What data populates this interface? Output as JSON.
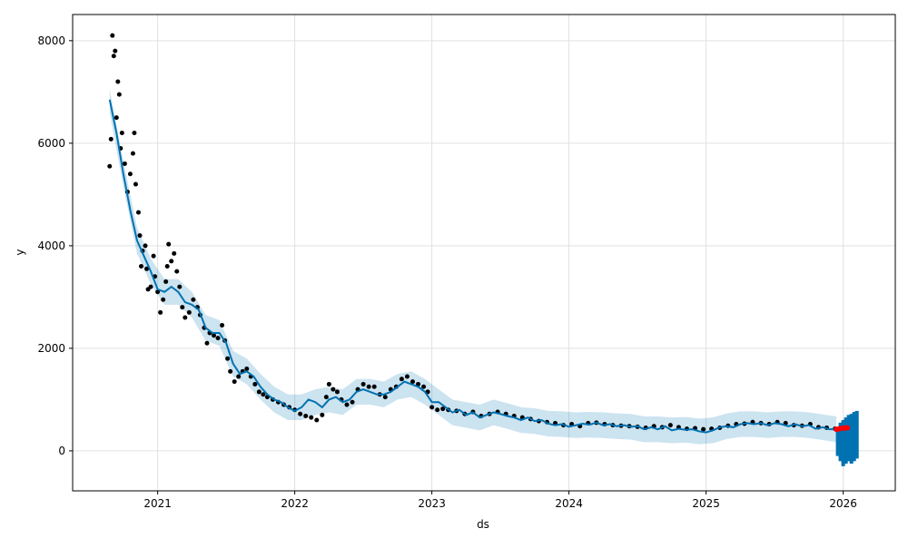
{
  "chart_data": {
    "type": "forecast",
    "xlabel": "ds",
    "ylabel": "y",
    "xlim": [
      2020.38,
      2026.38
    ],
    "xticks": [
      2021,
      2022,
      2023,
      2024,
      2025,
      2026
    ],
    "ylim": [
      -780,
      8510
    ],
    "yticks": [
      0,
      2000,
      4000,
      6000,
      8000
    ],
    "grid": true,
    "point_color": "#000000",
    "recent_color": "#ff0000",
    "line_color": "#0072B2",
    "band_color": "#0072B2",
    "points": {
      "x": [
        2020.65,
        2020.66,
        2020.67,
        2020.68,
        2020.69,
        2020.7,
        2020.71,
        2020.72,
        2020.73,
        2020.74,
        2020.76,
        2020.78,
        2020.8,
        2020.82,
        2020.83,
        2020.84,
        2020.86,
        2020.87,
        2020.88,
        2020.89,
        2020.91,
        2020.92,
        2020.93,
        2020.95,
        2020.97,
        2020.98,
        2021.0,
        2021.02,
        2021.04,
        2021.06,
        2021.07,
        2021.08,
        2021.1,
        2021.12,
        2021.14,
        2021.16,
        2021.18,
        2021.2,
        2021.23,
        2021.26,
        2021.29,
        2021.31,
        2021.34,
        2021.36,
        2021.38,
        2021.41,
        2021.44,
        2021.47,
        2021.49,
        2021.51,
        2021.53,
        2021.56,
        2021.59,
        2021.62,
        2021.65,
        2021.68,
        2021.71,
        2021.74,
        2021.77,
        2021.8,
        2021.84,
        2021.88,
        2021.92,
        2021.96,
        2022.0,
        2022.04,
        2022.08,
        2022.12,
        2022.16,
        2022.2,
        2022.23,
        2022.25,
        2022.28,
        2022.31,
        2022.34,
        2022.38,
        2022.42,
        2022.46,
        2022.5,
        2022.54,
        2022.58,
        2022.62,
        2022.66,
        2022.7,
        2022.74,
        2022.78,
        2022.82,
        2022.86,
        2022.9,
        2022.94,
        2022.97,
        2023.0,
        2023.04,
        2023.08,
        2023.12,
        2023.18,
        2023.24,
        2023.3,
        2023.36,
        2023.42,
        2023.48,
        2023.54,
        2023.6,
        2023.66,
        2023.72,
        2023.78,
        2023.84,
        2023.9,
        2023.96,
        2024.02,
        2024.08,
        2024.14,
        2024.2,
        2024.26,
        2024.32,
        2024.38,
        2024.44,
        2024.5,
        2024.56,
        2024.62,
        2024.68,
        2024.74,
        2024.8,
        2024.86,
        2024.92,
        2024.98,
        2025.04,
        2025.1,
        2025.16,
        2025.22,
        2025.28,
        2025.34,
        2025.4,
        2025.46,
        2025.52,
        2025.58,
        2025.64,
        2025.7,
        2025.76,
        2025.82,
        2025.88,
        2025.94
      ],
      "y": [
        5550,
        6080,
        8100,
        7700,
        7800,
        6500,
        7200,
        6950,
        5900,
        6200,
        5600,
        5050,
        5400,
        5800,
        6200,
        5200,
        4650,
        4200,
        3600,
        3900,
        4000,
        3550,
        3150,
        3200,
        3800,
        3400,
        3100,
        2700,
        2950,
        3300,
        3600,
        4030,
        3700,
        3850,
        3500,
        3200,
        2800,
        2600,
        2700,
        2950,
        2800,
        2650,
        2400,
        2100,
        2300,
        2250,
        2200,
        2450,
        2150,
        1800,
        1550,
        1350,
        1450,
        1550,
        1600,
        1450,
        1300,
        1150,
        1100,
        1050,
        1000,
        950,
        900,
        850,
        800,
        720,
        680,
        650,
        600,
        700,
        1050,
        1300,
        1200,
        1150,
        1000,
        900,
        950,
        1200,
        1300,
        1250,
        1250,
        1100,
        1050,
        1200,
        1250,
        1400,
        1450,
        1350,
        1300,
        1250,
        1150,
        850,
        800,
        820,
        800,
        780,
        720,
        760,
        680,
        720,
        760,
        720,
        680,
        650,
        620,
        580,
        560,
        540,
        500,
        520,
        480,
        540,
        550,
        520,
        500,
        490,
        480,
        470,
        450,
        480,
        460,
        500,
        460,
        430,
        440,
        420,
        430,
        450,
        490,
        520,
        530,
        560,
        540,
        520,
        560,
        540,
        500,
        490,
        520,
        460,
        450,
        430
      ]
    },
    "recent": {
      "x": [
        2025.95,
        2025.97,
        2025.99,
        2026.01,
        2026.03
      ],
      "y": [
        420,
        430,
        440,
        445,
        450
      ]
    },
    "fit": {
      "x": [
        2020.65,
        2020.7,
        2020.75,
        2020.8,
        2020.85,
        2020.9,
        2020.95,
        2021.0,
        2021.05,
        2021.1,
        2021.15,
        2021.2,
        2021.25,
        2021.3,
        2021.35,
        2021.4,
        2021.45,
        2021.5,
        2021.55,
        2021.6,
        2021.65,
        2021.7,
        2021.75,
        2021.8,
        2021.85,
        2021.9,
        2021.95,
        2022.0,
        2022.05,
        2022.1,
        2022.15,
        2022.2,
        2022.25,
        2022.3,
        2022.35,
        2022.4,
        2022.45,
        2022.5,
        2022.55,
        2022.6,
        2022.65,
        2022.7,
        2022.75,
        2022.8,
        2022.85,
        2022.9,
        2022.95,
        2023.0,
        2023.05,
        2023.1,
        2023.15,
        2023.2,
        2023.25,
        2023.3,
        2023.35,
        2023.4,
        2023.45,
        2023.5,
        2023.55,
        2023.6,
        2023.65,
        2023.7,
        2023.75,
        2023.8,
        2023.85,
        2023.9,
        2023.95,
        2024.0,
        2024.05,
        2024.1,
        2024.15,
        2024.2,
        2024.25,
        2024.3,
        2024.35,
        2024.4,
        2024.45,
        2024.5,
        2024.55,
        2024.6,
        2024.65,
        2024.7,
        2024.75,
        2024.8,
        2024.85,
        2024.9,
        2024.95,
        2025.0,
        2025.05,
        2025.1,
        2025.15,
        2025.2,
        2025.25,
        2025.3,
        2025.35,
        2025.4,
        2025.45,
        2025.5,
        2025.55,
        2025.6,
        2025.65,
        2025.7,
        2025.75,
        2025.8,
        2025.85,
        2025.9,
        2025.95
      ],
      "y": [
        6850,
        6200,
        5400,
        4700,
        4100,
        3800,
        3500,
        3150,
        3100,
        3200,
        3100,
        2900,
        2850,
        2750,
        2400,
        2300,
        2300,
        2100,
        1700,
        1500,
        1550,
        1450,
        1250,
        1100,
        1000,
        950,
        850,
        780,
        850,
        1000,
        950,
        850,
        1000,
        1050,
        950,
        1000,
        1150,
        1200,
        1150,
        1100,
        1100,
        1150,
        1250,
        1350,
        1300,
        1250,
        1150,
        950,
        950,
        850,
        750,
        800,
        700,
        750,
        650,
        700,
        750,
        720,
        680,
        650,
        600,
        650,
        580,
        600,
        530,
        500,
        520,
        470,
        500,
        530,
        510,
        550,
        500,
        520,
        480,
        500,
        470,
        480,
        420,
        460,
        420,
        480,
        400,
        430,
        410,
        420,
        380,
        360,
        400,
        460,
        480,
        460,
        520,
        540,
        520,
        540,
        500,
        540,
        520,
        480,
        520,
        480,
        500,
        430,
        460,
        420,
        420
      ]
    },
    "band": {
      "x": [
        2020.65,
        2020.75,
        2020.85,
        2020.95,
        2021.05,
        2021.15,
        2021.25,
        2021.35,
        2021.45,
        2021.55,
        2021.65,
        2021.75,
        2021.85,
        2021.95,
        2022.05,
        2022.15,
        2022.25,
        2022.35,
        2022.45,
        2022.55,
        2022.65,
        2022.75,
        2022.85,
        2022.95,
        2023.05,
        2023.15,
        2023.25,
        2023.35,
        2023.45,
        2023.55,
        2023.65,
        2023.75,
        2023.85,
        2023.95,
        2024.05,
        2024.15,
        2024.25,
        2024.35,
        2024.45,
        2024.55,
        2024.65,
        2024.75,
        2024.85,
        2024.95,
        2025.05,
        2025.15,
        2025.25,
        2025.35,
        2025.45,
        2025.55,
        2025.65,
        2025.75,
        2025.85,
        2025.95
      ],
      "lower": [
        6600,
        5150,
        3850,
        3250,
        2850,
        2850,
        2600,
        2150,
        2050,
        1450,
        1300,
        1000,
        750,
        600,
        600,
        700,
        750,
        700,
        900,
        900,
        850,
        1000,
        1050,
        900,
        700,
        500,
        450,
        400,
        500,
        430,
        350,
        330,
        280,
        270,
        250,
        260,
        250,
        230,
        220,
        170,
        170,
        150,
        160,
        130,
        150,
        230,
        270,
        270,
        250,
        270,
        270,
        250,
        210,
        170
      ],
      "upper": [
        7050,
        5650,
        4350,
        3750,
        3350,
        3350,
        3100,
        2650,
        2550,
        1950,
        1800,
        1500,
        1250,
        1100,
        1100,
        1200,
        1250,
        1200,
        1400,
        1400,
        1350,
        1500,
        1550,
        1400,
        1200,
        1000,
        950,
        900,
        1000,
        930,
        850,
        830,
        780,
        770,
        750,
        760,
        750,
        730,
        720,
        670,
        670,
        650,
        660,
        630,
        650,
        730,
        770,
        770,
        750,
        770,
        770,
        750,
        710,
        670
      ]
    },
    "future": {
      "x": [
        2025.96,
        2025.98,
        2026.0,
        2026.02,
        2026.04,
        2026.06,
        2026.08,
        2026.1
      ],
      "lower": [
        -100,
        -200,
        -300,
        -250,
        -200,
        -250,
        -200,
        -150
      ],
      "upper": [
        450,
        550,
        600,
        650,
        700,
        720,
        760,
        780
      ]
    }
  }
}
